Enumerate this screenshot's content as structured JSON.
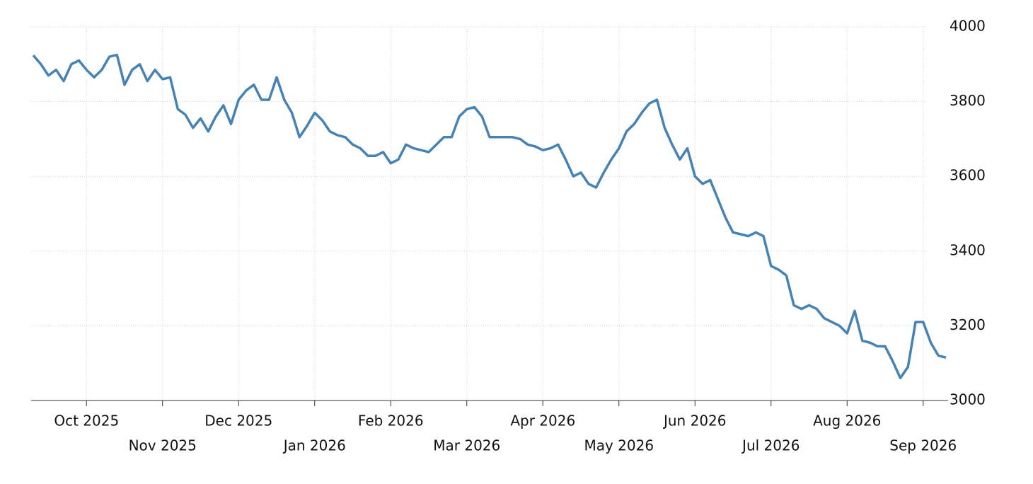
{
  "chart_data": {
    "type": "line",
    "categories": [
      null,
      null,
      null,
      null,
      null,
      null,
      null,
      "Oct 2025",
      null,
      null,
      null,
      null,
      null,
      null,
      null,
      null,
      null,
      "Nov 2025",
      null,
      null,
      null,
      null,
      null,
      null,
      null,
      null,
      null,
      "Dec 2025",
      null,
      null,
      null,
      null,
      null,
      null,
      null,
      null,
      null,
      "Jan 2026",
      null,
      null,
      null,
      null,
      null,
      null,
      null,
      null,
      null,
      "Feb 2026",
      null,
      null,
      null,
      null,
      null,
      null,
      null,
      null,
      null,
      "Mar 2026",
      null,
      null,
      null,
      null,
      null,
      null,
      null,
      null,
      null,
      "Apr 2026",
      null,
      null,
      null,
      null,
      null,
      null,
      null,
      null,
      null,
      "May 2026",
      null,
      null,
      null,
      null,
      null,
      null,
      null,
      null,
      null,
      "Jun 2026",
      null,
      null,
      null,
      null,
      null,
      null,
      null,
      null,
      null,
      "Jul 2026",
      null,
      null,
      null,
      null,
      null,
      null,
      null,
      null,
      null,
      "Aug 2026",
      null,
      null,
      null,
      null,
      null,
      null,
      null,
      null,
      null,
      "Sep 2026",
      null,
      null,
      null
    ],
    "values": [
      3924,
      3900,
      3870,
      3885,
      3855,
      3900,
      3910,
      3885,
      3865,
      3885,
      3920,
      3925,
      3845,
      3885,
      3900,
      3855,
      3885,
      3860,
      3865,
      3780,
      3765,
      3730,
      3755,
      3720,
      3760,
      3790,
      3740,
      3805,
      3830,
      3845,
      3805,
      3805,
      3865,
      3805,
      3770,
      3705,
      3735,
      3770,
      3750,
      3720,
      3710,
      3705,
      3685,
      3675,
      3655,
      3655,
      3665,
      3635,
      3645,
      3685,
      3675,
      3670,
      3665,
      3685,
      3705,
      3705,
      3760,
      3780,
      3785,
      3760,
      3705,
      3705,
      3705,
      3705,
      3700,
      3685,
      3680,
      3670,
      3675,
      3685,
      3645,
      3600,
      3610,
      3580,
      3570,
      3610,
      3645,
      3675,
      3720,
      3740,
      3770,
      3795,
      3805,
      3730,
      3685,
      3645,
      3675,
      3600,
      3580,
      3590,
      3540,
      3490,
      3450,
      3445,
      3440,
      3450,
      3440,
      3360,
      3350,
      3335,
      3255,
      3245,
      3255,
      3245,
      3220,
      3210,
      3200,
      3180,
      3240,
      3160,
      3155,
      3145,
      3145,
      3105,
      3060,
      3090,
      3210,
      3210,
      3155,
      3120,
      3115
    ],
    "color": "#4682b4",
    "ylim": [
      3000,
      4000
    ],
    "yticks": [
      3000,
      3200,
      3400,
      3600,
      3800,
      4000
    ],
    "grid": true
  }
}
